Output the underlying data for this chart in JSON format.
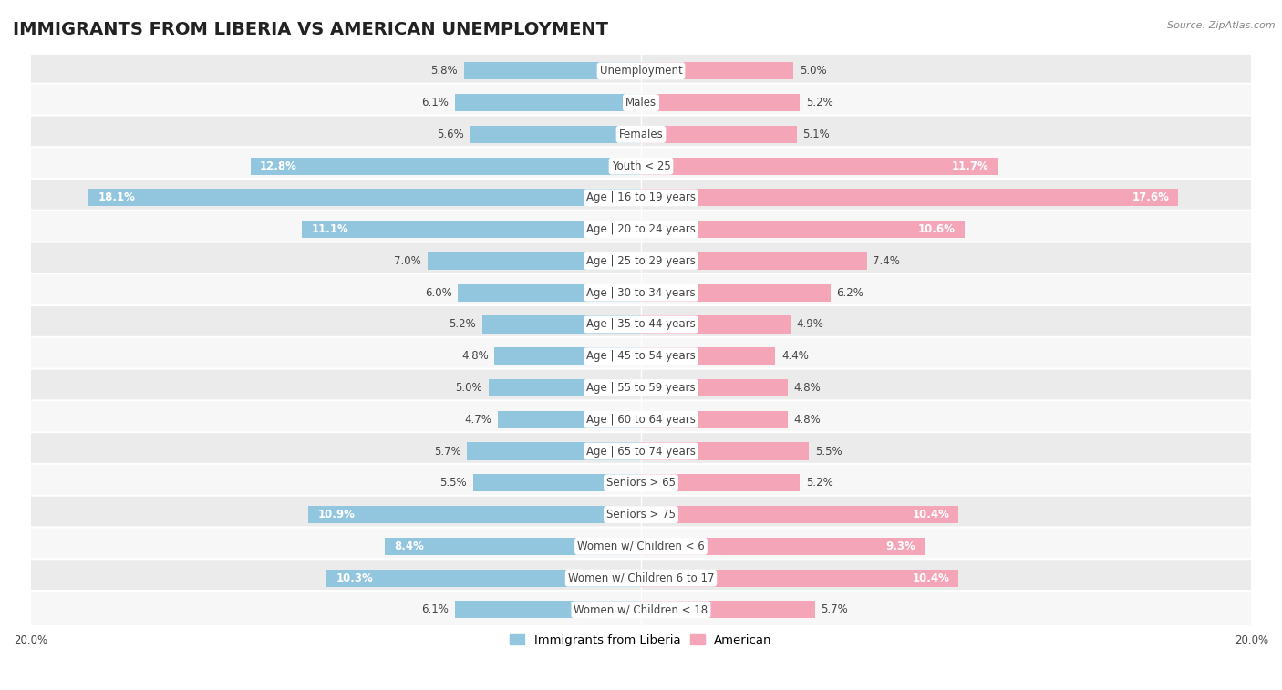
{
  "title": "IMMIGRANTS FROM LIBERIA VS AMERICAN UNEMPLOYMENT",
  "source": "Source: ZipAtlas.com",
  "categories": [
    "Unemployment",
    "Males",
    "Females",
    "Youth < 25",
    "Age | 16 to 19 years",
    "Age | 20 to 24 years",
    "Age | 25 to 29 years",
    "Age | 30 to 34 years",
    "Age | 35 to 44 years",
    "Age | 45 to 54 years",
    "Age | 55 to 59 years",
    "Age | 60 to 64 years",
    "Age | 65 to 74 years",
    "Seniors > 65",
    "Seniors > 75",
    "Women w/ Children < 6",
    "Women w/ Children 6 to 17",
    "Women w/ Children < 18"
  ],
  "liberia_values": [
    5.8,
    6.1,
    5.6,
    12.8,
    18.1,
    11.1,
    7.0,
    6.0,
    5.2,
    4.8,
    5.0,
    4.7,
    5.7,
    5.5,
    10.9,
    8.4,
    10.3,
    6.1
  ],
  "american_values": [
    5.0,
    5.2,
    5.1,
    11.7,
    17.6,
    10.6,
    7.4,
    6.2,
    4.9,
    4.4,
    4.8,
    4.8,
    5.5,
    5.2,
    10.4,
    9.3,
    10.4,
    5.7
  ],
  "liberia_color": "#92c5de",
  "american_color": "#f4a6b8",
  "bar_height": 0.55,
  "max_val": 20.0,
  "row_colors": [
    "#ebebeb",
    "#f7f7f7"
  ],
  "title_fontsize": 14,
  "label_fontsize": 9,
  "value_fontsize": 8.5,
  "legend_fontsize": 9.5,
  "cat_label_fontsize": 8.5
}
